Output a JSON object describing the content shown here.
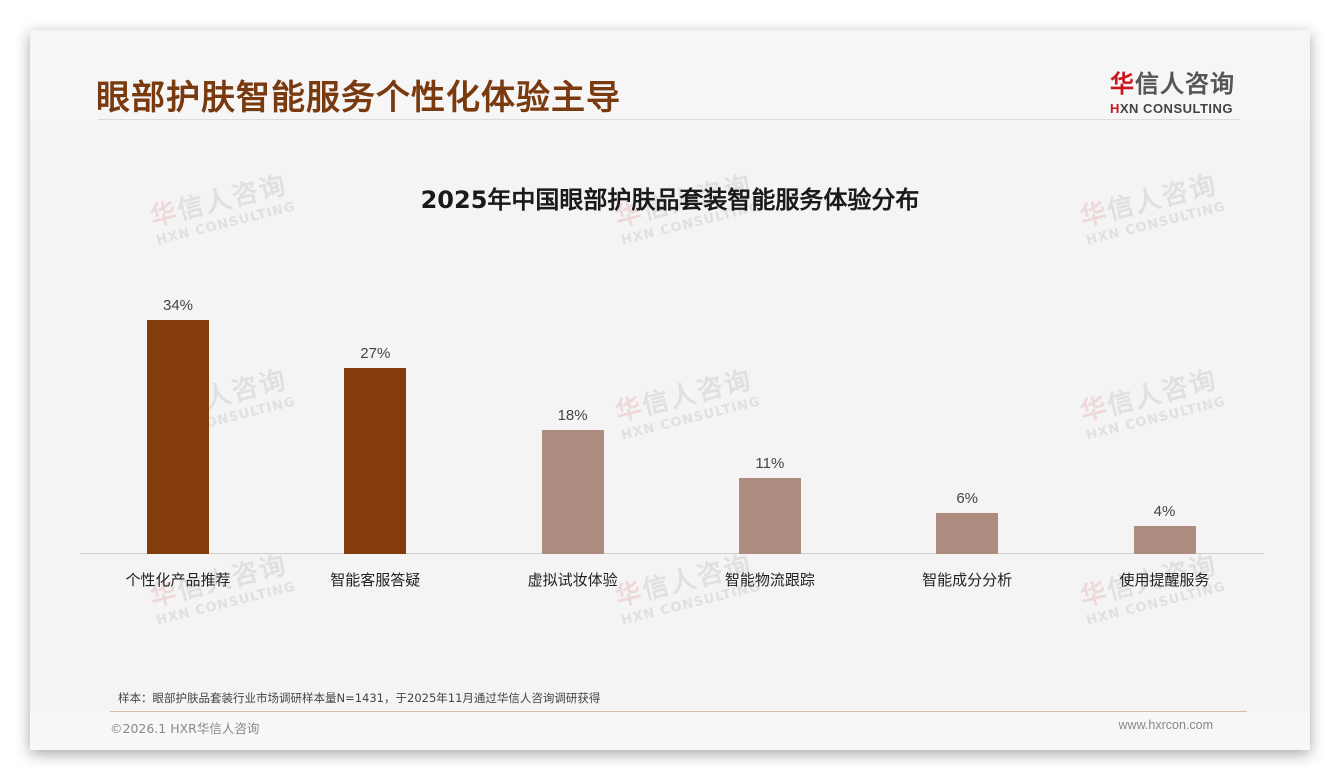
{
  "header": {
    "title": "眼部护肤智能服务个性化体验主导",
    "logo_cn_first": "华",
    "logo_cn_rest": "信人咨询",
    "logo_en_first": "H",
    "logo_en_rest": "XN CONSULTING"
  },
  "watermark": {
    "cn_first": "华",
    "cn_rest": "信人咨询",
    "en": "HXN CONSULTING"
  },
  "colors": {
    "title": "#7a3a10",
    "bar_highlight": "#843c0c",
    "bar_normal": "#ae8c80",
    "logo_accent": "#c8161d"
  },
  "chart_data": {
    "type": "bar",
    "title": "2025年中国眼部护肤品套装智能服务体验分布",
    "categories": [
      "个性化产品推荐",
      "智能客服答疑",
      "虚拟试妆体验",
      "智能物流跟踪",
      "智能成分分析",
      "使用提醒服务"
    ],
    "values": [
      34,
      27,
      18,
      11,
      6,
      4
    ],
    "value_labels": [
      "34%",
      "27%",
      "18%",
      "11%",
      "6%",
      "4%"
    ],
    "highlight": [
      true,
      true,
      false,
      false,
      false,
      false
    ],
    "xlabel": "",
    "ylabel": "",
    "unit": "%",
    "ylim": [
      0,
      40
    ],
    "grid": false,
    "legend": "none"
  },
  "footer": {
    "sample_note": "样本：眼部护肤品套装行业市场调研样本量N=1431，于2025年11月通过华信人咨询调研获得",
    "copyright": "©2026.1 HXR华信人咨询",
    "website": "www.hxrcon.com"
  }
}
